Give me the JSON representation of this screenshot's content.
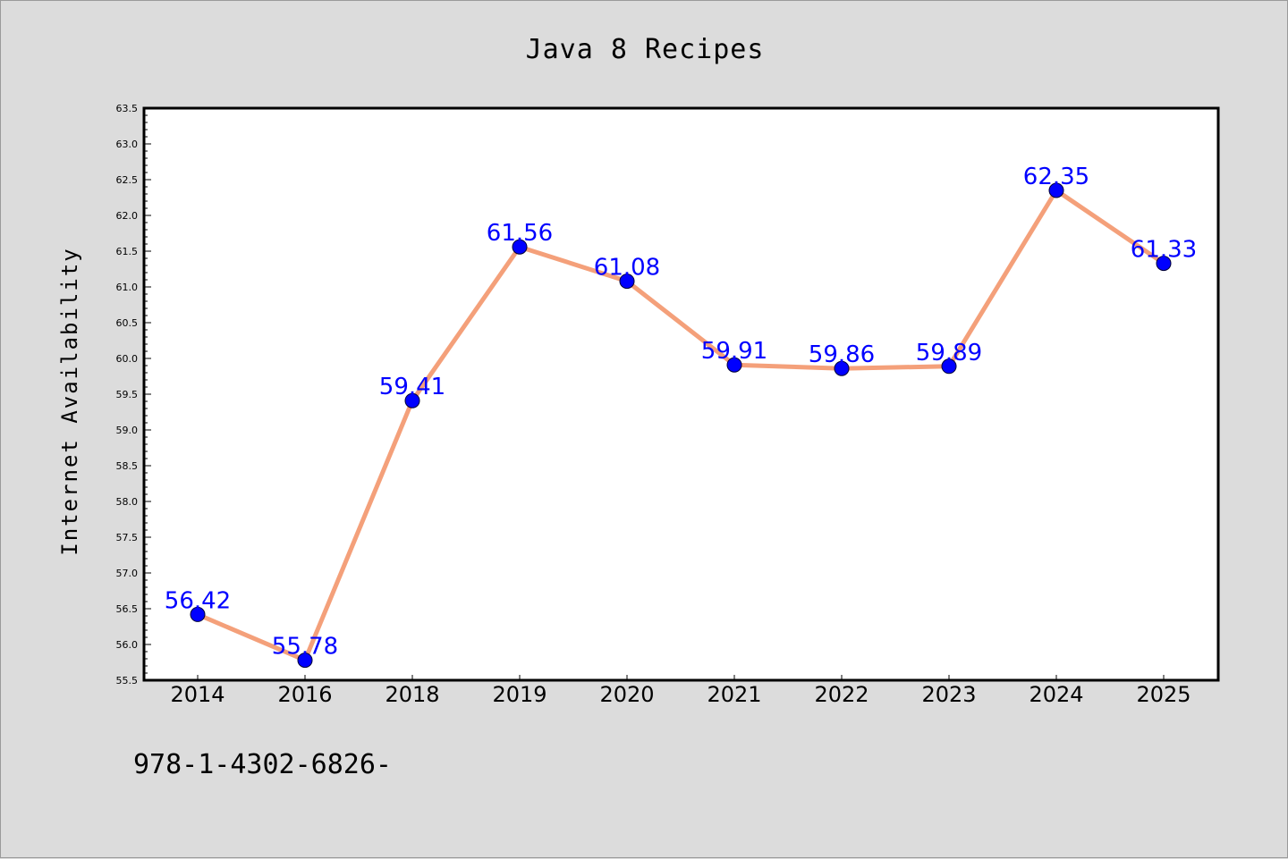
{
  "chart_data": {
    "type": "line",
    "title": "Java 8 Recipes",
    "ylabel": "Internet Availability",
    "xlabel": "",
    "categories": [
      "2014",
      "2016",
      "2018",
      "2019",
      "2020",
      "2021",
      "2022",
      "2023",
      "2024",
      "2025"
    ],
    "values": [
      56.42,
      55.78,
      59.41,
      61.56,
      61.08,
      59.91,
      59.86,
      59.89,
      62.35,
      61.33
    ],
    "data_labels": [
      "56.42",
      "55.78",
      "59.41",
      "61.56",
      "61.08",
      "59.91",
      "59.86",
      "59.89",
      "62.35",
      "61.33"
    ],
    "ylim": [
      55.5,
      63.5
    ],
    "yticks": [
      "55.5",
      "56.0",
      "56.5",
      "57.0",
      "57.5",
      "58.0",
      "58.5",
      "59.0",
      "59.5",
      "60.0",
      "60.5",
      "61.0",
      "61.5",
      "62.0",
      "62.5",
      "63.0",
      "63.5"
    ],
    "grid": false,
    "legend": "none",
    "line_color": "#f4a07a",
    "marker_color": "#0000ff",
    "label_color": "#0000ff"
  },
  "footer": {
    "text": "978-1-4302-6826-"
  }
}
